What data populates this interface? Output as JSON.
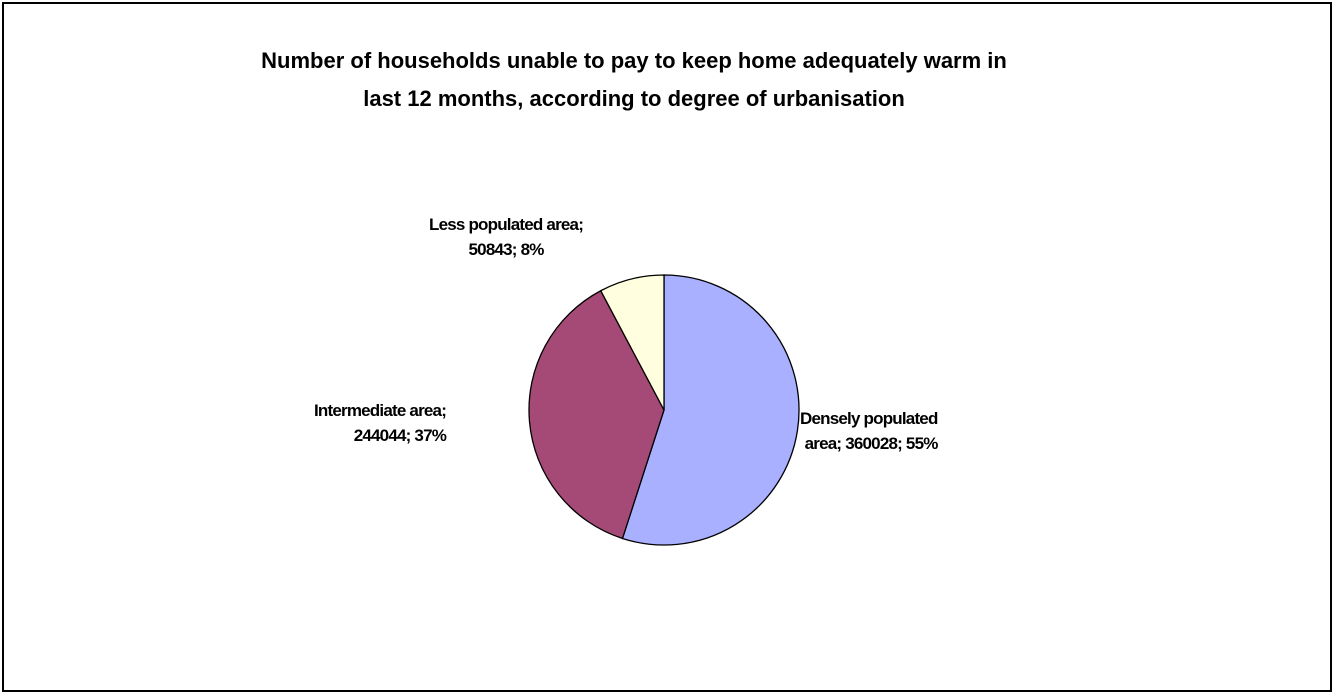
{
  "chart_data": {
    "type": "pie",
    "title": "Number of households unable to pay to keep home adequately warm in last 12 months, according to degree of urbanisation",
    "title_lines": [
      "Number of households unable to pay to keep home adequately warm in",
      "last 12 months, according to degree of urbanisation"
    ],
    "categories": [
      "Densely populated area",
      "Intermediate area",
      "Less populated area"
    ],
    "values": [
      360028,
      244044,
      50843
    ],
    "percentages": [
      55,
      37,
      8
    ],
    "colors": [
      "#a8b0ff",
      "#a54a76",
      "#ffffe0"
    ],
    "labels": [
      {
        "line1": "Densely populated",
        "line2": "area; 360028; 55%"
      },
      {
        "line1": "Intermediate area;",
        "line2": "244044; 37%"
      },
      {
        "line1": "Less populated area;",
        "line2": "50843; 8%"
      }
    ],
    "legend": "none"
  }
}
